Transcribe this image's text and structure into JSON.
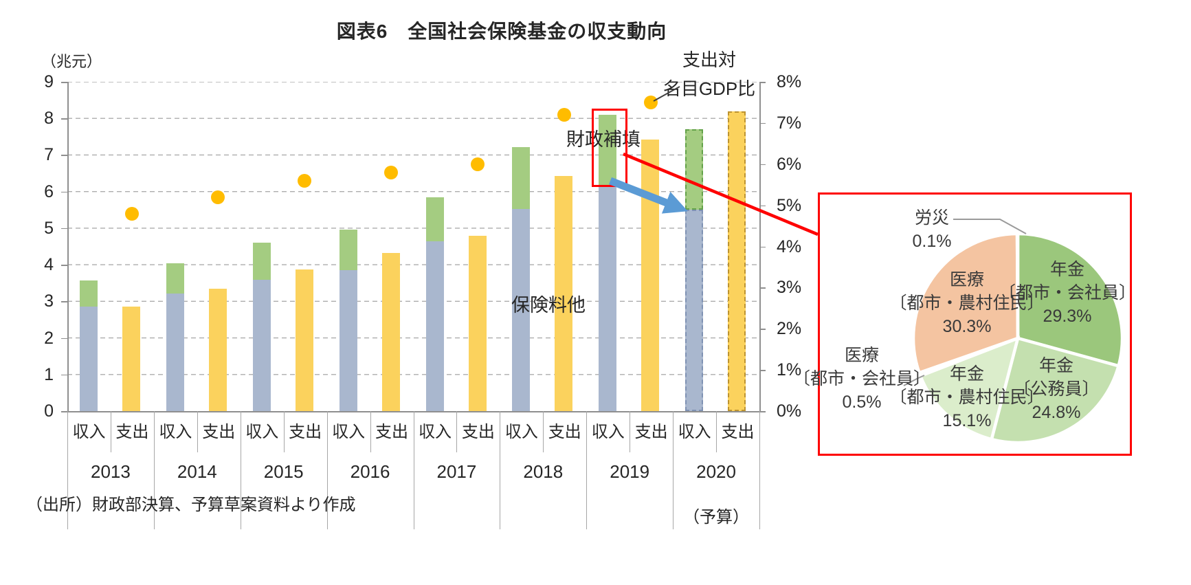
{
  "title": "図表6　全国社会保険基金の収支動向",
  "unit_label": "（兆元）",
  "source": "（出所）財政部決算、予算草案資料より作成",
  "annotations": {
    "gdp_line1": "支出対",
    "gdp_line2": "名目GDP比",
    "subsidy_label": "財政補填",
    "premium_label": "保険料他",
    "budget_note": "（予算）"
  },
  "bar_pair_labels": {
    "income": "収入",
    "expenditure": "支出"
  },
  "chart_data": {
    "type": "combo-stacked-bar-line",
    "title": "図表6　全国社会保険基金の収支動向",
    "left_axis": {
      "label": "兆元",
      "min": 0,
      "max": 9,
      "tick_step": 1,
      "grid": "dashed"
    },
    "right_axis": {
      "label": "支出対名目GDP比",
      "min": 0,
      "max": 8,
      "tick_step": 1,
      "unit": "%"
    },
    "series_names": {
      "premium": "保険料他",
      "subsidy": "財政補填",
      "expenditure": "支出",
      "gdp_ratio": "支出対名目GDP比"
    },
    "years": [
      {
        "year": "2013",
        "premium": 2.85,
        "subsidy": 0.72,
        "income_total": 3.57,
        "expenditure": 2.85,
        "gdp_ratio_pct": 4.8,
        "budget": false
      },
      {
        "year": "2014",
        "premium": 3.22,
        "subsidy": 0.82,
        "income_total": 4.04,
        "expenditure": 3.35,
        "gdp_ratio_pct": 5.2,
        "budget": false
      },
      {
        "year": "2015",
        "premium": 3.58,
        "subsidy": 1.02,
        "income_total": 4.6,
        "expenditure": 3.88,
        "gdp_ratio_pct": 5.6,
        "budget": false
      },
      {
        "year": "2016",
        "premium": 3.85,
        "subsidy": 1.12,
        "income_total": 4.97,
        "expenditure": 4.32,
        "gdp_ratio_pct": 5.8,
        "budget": false
      },
      {
        "year": "2017",
        "premium": 4.65,
        "subsidy": 1.2,
        "income_total": 5.85,
        "expenditure": 4.8,
        "gdp_ratio_pct": 6.0,
        "budget": false
      },
      {
        "year": "2018",
        "premium": 5.52,
        "subsidy": 1.7,
        "income_total": 7.22,
        "expenditure": 6.42,
        "gdp_ratio_pct": 7.2,
        "budget": false
      },
      {
        "year": "2019",
        "premium": 6.15,
        "subsidy": 1.95,
        "income_total": 8.1,
        "expenditure": 7.42,
        "gdp_ratio_pct": 7.5,
        "budget": false
      },
      {
        "year": "2020",
        "premium": 5.5,
        "subsidy": 2.2,
        "income_total": 7.7,
        "expenditure": 8.2,
        "gdp_ratio_pct": null,
        "budget": true
      }
    ]
  },
  "pie_chart": {
    "type": "pie",
    "start_angle_deg": 0,
    "direction": "clockwise",
    "slices": [
      {
        "lines": [
          "年金",
          "〔都市・会社員〕"
        ],
        "pct": 29.3,
        "pct_text": "29.3%",
        "color": "#9bc77c"
      },
      {
        "lines": [
          "年金",
          "〔公務員〕"
        ],
        "pct": 24.8,
        "pct_text": "24.8%",
        "color": "#c4e0af"
      },
      {
        "lines": [
          "年金",
          "〔都市・農村住民〕"
        ],
        "pct": 15.1,
        "pct_text": "15.1%",
        "color": "#dbedcb"
      },
      {
        "lines": [
          "医療",
          "〔都市・会社員〕"
        ],
        "pct": 0.5,
        "pct_text": "0.5%",
        "color": "#e7f2db"
      },
      {
        "lines": [
          "医療",
          "〔都市・農村住民〕"
        ],
        "pct": 30.3,
        "pct_text": "30.3%",
        "color": "#f4c4a1"
      },
      {
        "lines": [
          "労災"
        ],
        "pct": 0.1,
        "pct_text": "0.1%",
        "color": "#e0e0e0"
      }
    ]
  },
  "colors": {
    "premium_bar": "#a9b7ce",
    "subsidy_bar": "#a4cc81",
    "expenditure_bar": "#fbd25d",
    "gdp_dot": "#ffbc00",
    "budget_premium_border": "#7f92b3",
    "budget_subsidy_border": "#63a249",
    "budget_expenditure_border": "#bd9330",
    "gridline": "#acacac",
    "axis": "#8f8f8f",
    "callout_red": "#fe0000",
    "arrow_blue": "#5b9bd5",
    "pie_slice_gap": "#ffffff"
  }
}
